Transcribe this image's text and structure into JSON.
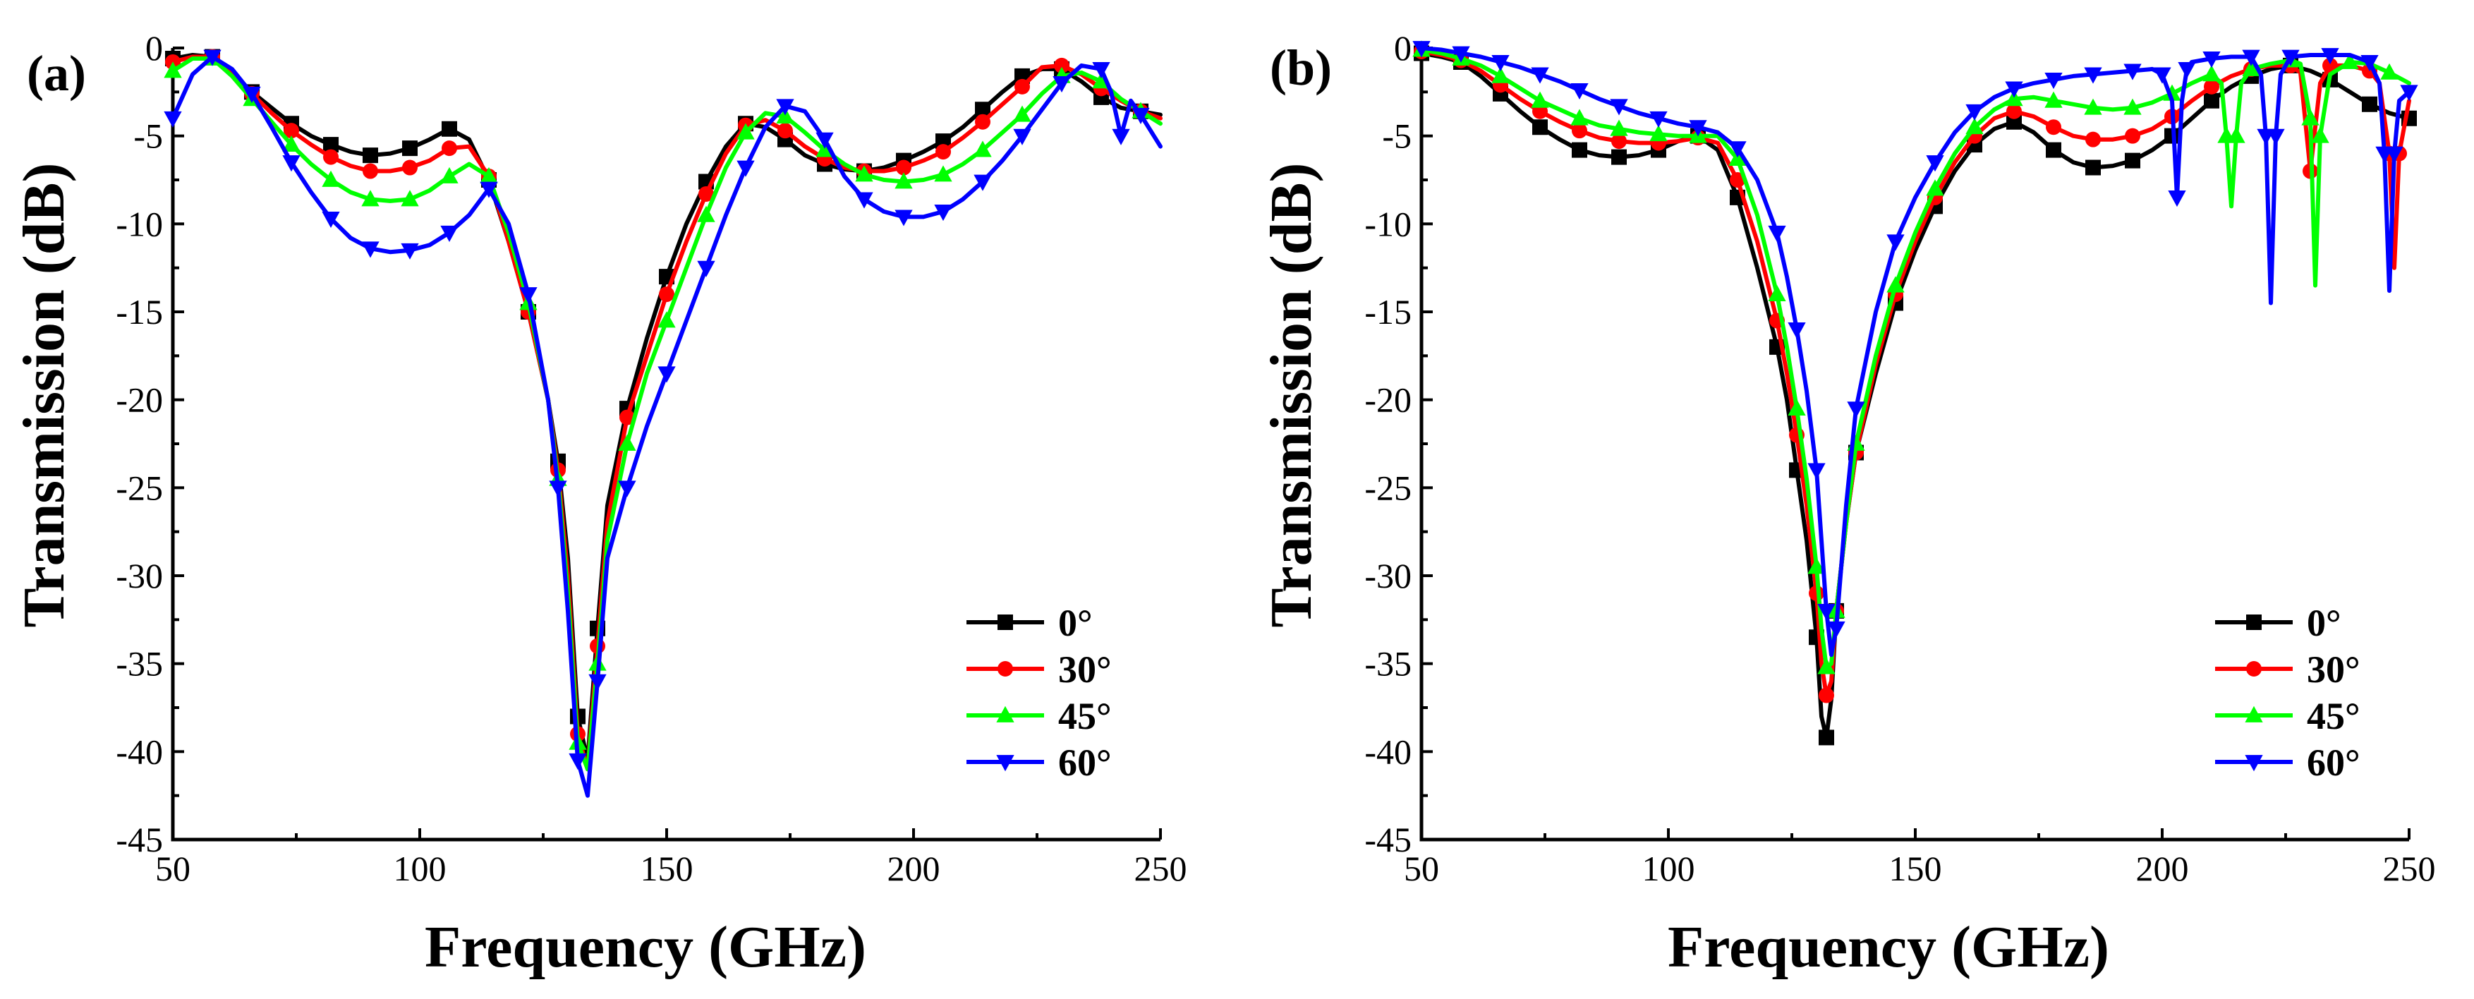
{
  "chart_data": [
    {
      "type": "line",
      "panel_label": "(a)",
      "xlabel": "Frequency (GHz)",
      "ylabel": "Transmission (dB)",
      "xlim": [
        50,
        250
      ],
      "ylim": [
        -45,
        0
      ],
      "xticks": [
        50,
        100,
        150,
        200,
        250
      ],
      "yticks": [
        0,
        -5,
        -10,
        -15,
        -20,
        -25,
        -30,
        -35,
        -40,
        -45
      ],
      "legend_position": "bottom-right",
      "series": [
        {
          "name": "0°",
          "color": "#000000",
          "marker": "square",
          "x": [
            50,
            54,
            58,
            62,
            66,
            70,
            74,
            78,
            82,
            86,
            90,
            94,
            98,
            102,
            106,
            110,
            114,
            118,
            122,
            126,
            128,
            130,
            132,
            134,
            136,
            138,
            142,
            146,
            150,
            154,
            158,
            162,
            166,
            170,
            174,
            178,
            182,
            186,
            190,
            194,
            198,
            202,
            206,
            210,
            214,
            218,
            222,
            226,
            230,
            234,
            238,
            242,
            246,
            250
          ],
          "y": [
            -0.6,
            -0.4,
            -0.5,
            -1.4,
            -2.5,
            -3.4,
            -4.3,
            -5.0,
            -5.5,
            -5.9,
            -6.1,
            -6.0,
            -5.7,
            -5.2,
            -4.6,
            -5.2,
            -7.5,
            -11.0,
            -15.0,
            -20.0,
            -23.5,
            -29.0,
            -38.0,
            -40.5,
            -33.0,
            -26.0,
            -20.5,
            -16.5,
            -13.0,
            -10.0,
            -7.6,
            -5.6,
            -4.3,
            -4.5,
            -5.2,
            -6.1,
            -6.6,
            -6.9,
            -7.0,
            -6.8,
            -6.4,
            -5.9,
            -5.3,
            -4.5,
            -3.5,
            -2.5,
            -1.6,
            -1.2,
            -1.2,
            -1.9,
            -2.8,
            -3.4,
            -3.6,
            -3.8
          ]
        },
        {
          "name": "30°",
          "color": "#ff0000",
          "marker": "circle",
          "x": [
            50,
            54,
            58,
            62,
            66,
            70,
            74,
            78,
            82,
            86,
            90,
            94,
            98,
            102,
            106,
            110,
            114,
            118,
            122,
            126,
            128,
            130,
            132,
            134,
            136,
            138,
            142,
            146,
            150,
            154,
            158,
            162,
            166,
            170,
            174,
            178,
            182,
            186,
            190,
            194,
            198,
            202,
            206,
            210,
            214,
            218,
            222,
            226,
            230,
            234,
            238,
            242,
            246,
            250
          ],
          "y": [
            -0.8,
            -0.5,
            -0.5,
            -1.5,
            -2.6,
            -3.7,
            -4.7,
            -5.5,
            -6.2,
            -6.7,
            -7.0,
            -7.0,
            -6.8,
            -6.4,
            -5.7,
            -5.6,
            -7.3,
            -11.0,
            -15.0,
            -20.0,
            -24.0,
            -30.0,
            -39.0,
            -41.0,
            -34.0,
            -27.0,
            -21.0,
            -17.5,
            -14.0,
            -11.0,
            -8.3,
            -6.0,
            -4.4,
            -4.1,
            -4.7,
            -5.6,
            -6.3,
            -6.8,
            -7.0,
            -7.0,
            -6.8,
            -6.4,
            -5.9,
            -5.1,
            -4.2,
            -3.2,
            -2.2,
            -1.1,
            -1.0,
            -1.5,
            -2.3,
            -3.0,
            -3.6,
            -4.0
          ]
        },
        {
          "name": "45°",
          "color": "#00ff00",
          "marker": "triangle-up",
          "x": [
            50,
            54,
            58,
            62,
            66,
            70,
            74,
            78,
            82,
            86,
            90,
            94,
            98,
            102,
            106,
            110,
            114,
            118,
            122,
            126,
            128,
            130,
            132,
            134,
            136,
            138,
            142,
            146,
            150,
            154,
            158,
            162,
            166,
            170,
            174,
            178,
            182,
            186,
            190,
            194,
            198,
            202,
            206,
            210,
            214,
            218,
            222,
            226,
            230,
            234,
            238,
            242,
            246,
            250
          ],
          "y": [
            -1.3,
            -0.6,
            -0.6,
            -1.6,
            -2.9,
            -4.2,
            -5.5,
            -6.6,
            -7.5,
            -8.2,
            -8.6,
            -8.7,
            -8.6,
            -8.1,
            -7.3,
            -6.6,
            -7.3,
            -10.5,
            -14.5,
            -20.0,
            -24.5,
            -31.0,
            -39.5,
            -41.0,
            -35.0,
            -28.0,
            -22.5,
            -18.5,
            -15.5,
            -12.5,
            -9.5,
            -6.8,
            -4.8,
            -3.7,
            -3.9,
            -4.8,
            -5.8,
            -6.6,
            -7.2,
            -7.5,
            -7.6,
            -7.5,
            -7.2,
            -6.6,
            -5.8,
            -4.8,
            -3.8,
            -2.6,
            -1.6,
            -1.4,
            -1.9,
            -2.9,
            -3.6,
            -4.3
          ]
        },
        {
          "name": "60°",
          "color": "#0000ff",
          "marker": "triangle-down",
          "x": [
            50,
            54,
            58,
            62,
            66,
            70,
            74,
            78,
            82,
            86,
            90,
            94,
            98,
            102,
            106,
            110,
            114,
            118,
            122,
            126,
            128,
            130,
            132,
            134,
            136,
            138,
            142,
            146,
            150,
            154,
            158,
            162,
            166,
            170,
            174,
            178,
            182,
            186,
            190,
            194,
            198,
            202,
            206,
            210,
            214,
            218,
            222,
            226,
            230,
            234,
            238,
            240,
            242,
            244,
            246,
            250
          ],
          "y": [
            -4.0,
            -1.5,
            -0.5,
            -1.2,
            -2.6,
            -4.5,
            -6.5,
            -8.2,
            -9.7,
            -10.8,
            -11.4,
            -11.6,
            -11.5,
            -11.2,
            -10.5,
            -9.5,
            -8.0,
            -10.0,
            -14.0,
            -20.0,
            -25.0,
            -32.0,
            -40.5,
            -42.5,
            -36.0,
            -29.0,
            -25.0,
            -21.5,
            -18.5,
            -15.5,
            -12.5,
            -9.5,
            -6.8,
            -4.5,
            -3.3,
            -3.6,
            -5.2,
            -7.3,
            -8.6,
            -9.3,
            -9.6,
            -9.6,
            -9.3,
            -8.6,
            -7.6,
            -6.4,
            -5.0,
            -3.5,
            -2.0,
            -1.0,
            -1.2,
            -2.5,
            -5.0,
            -3.0,
            -3.8,
            -5.6
          ]
        }
      ]
    },
    {
      "type": "line",
      "panel_label": "(b)",
      "xlabel": "Frequency (GHz)",
      "ylabel": "Transmission (dB)",
      "xlim": [
        50,
        250
      ],
      "ylim": [
        -45,
        0
      ],
      "xticks": [
        50,
        100,
        150,
        200,
        250
      ],
      "yticks": [
        0,
        -5,
        -10,
        -15,
        -20,
        -25,
        -30,
        -35,
        -40,
        -45
      ],
      "legend_position": "bottom-right",
      "series": [
        {
          "name": "0°",
          "color": "#000000",
          "marker": "square",
          "x": [
            50,
            54,
            58,
            62,
            66,
            70,
            74,
            78,
            82,
            86,
            90,
            94,
            98,
            102,
            106,
            110,
            114,
            118,
            122,
            124,
            126,
            128,
            130,
            131,
            132,
            133,
            134,
            136,
            138,
            142,
            146,
            150,
            154,
            158,
            162,
            166,
            170,
            174,
            178,
            182,
            186,
            190,
            194,
            198,
            202,
            206,
            210,
            214,
            218,
            222,
            226,
            230,
            234,
            238,
            242,
            246,
            250
          ],
          "y": [
            -0.3,
            -0.5,
            -0.8,
            -1.6,
            -2.6,
            -3.6,
            -4.5,
            -5.2,
            -5.8,
            -6.1,
            -6.2,
            -6.1,
            -5.8,
            -5.3,
            -5.0,
            -5.8,
            -8.5,
            -12.5,
            -17.0,
            -20.0,
            -24.0,
            -28.0,
            -33.5,
            -38.0,
            -39.2,
            -37.0,
            -32.0,
            -27.0,
            -23.0,
            -18.5,
            -14.5,
            -11.5,
            -9.0,
            -7.0,
            -5.5,
            -4.6,
            -4.2,
            -4.8,
            -5.8,
            -6.5,
            -6.8,
            -6.7,
            -6.4,
            -5.8,
            -5.0,
            -4.0,
            -3.0,
            -2.2,
            -1.6,
            -1.2,
            -1.0,
            -1.3,
            -1.8,
            -2.5,
            -3.2,
            -3.7,
            -4.0
          ]
        },
        {
          "name": "30°",
          "color": "#ff0000",
          "marker": "circle",
          "x": [
            50,
            54,
            58,
            62,
            66,
            70,
            74,
            78,
            82,
            86,
            90,
            94,
            98,
            102,
            106,
            110,
            114,
            118,
            122,
            124,
            126,
            128,
            130,
            131,
            132,
            133,
            134,
            136,
            138,
            142,
            146,
            150,
            154,
            158,
            162,
            166,
            170,
            174,
            178,
            182,
            186,
            190,
            194,
            198,
            202,
            206,
            210,
            214,
            218,
            222,
            226,
            228,
            230,
            232,
            234,
            238,
            242,
            244,
            246,
            247,
            248,
            250
          ],
          "y": [
            -0.2,
            -0.4,
            -0.7,
            -1.3,
            -2.1,
            -2.9,
            -3.6,
            -4.2,
            -4.7,
            -5.1,
            -5.3,
            -5.4,
            -5.4,
            -5.3,
            -5.1,
            -5.4,
            -7.5,
            -11.0,
            -15.5,
            -18.5,
            -22.0,
            -26.0,
            -31.0,
            -35.0,
            -36.8,
            -36.0,
            -32.0,
            -27.0,
            -23.0,
            -18.0,
            -14.0,
            -11.0,
            -8.5,
            -6.5,
            -5.0,
            -4.0,
            -3.6,
            -3.9,
            -4.5,
            -5.0,
            -5.2,
            -5.2,
            -5.0,
            -4.6,
            -3.9,
            -3.0,
            -2.2,
            -1.6,
            -1.2,
            -1.0,
            -1.0,
            -1.4,
            -7.0,
            -2.0,
            -1.0,
            -1.0,
            -1.3,
            -2.0,
            -6.0,
            -12.5,
            -6.0,
            -3.0
          ]
        },
        {
          "name": "45°",
          "color": "#00ff00",
          "marker": "triangle-up",
          "x": [
            50,
            54,
            58,
            62,
            66,
            70,
            74,
            78,
            82,
            86,
            90,
            94,
            98,
            102,
            106,
            110,
            114,
            118,
            122,
            124,
            126,
            128,
            130,
            131,
            132,
            133,
            134,
            136,
            138,
            142,
            146,
            150,
            154,
            158,
            162,
            166,
            170,
            174,
            178,
            182,
            186,
            190,
            194,
            198,
            202,
            206,
            210,
            212,
            213,
            214,
            215,
            216,
            218,
            222,
            226,
            228,
            230,
            231,
            232,
            234,
            238,
            242,
            246,
            250
          ],
          "y": [
            -0.1,
            -0.3,
            -0.6,
            -1.0,
            -1.6,
            -2.3,
            -3.0,
            -3.5,
            -4.0,
            -4.4,
            -4.6,
            -4.8,
            -4.9,
            -5.0,
            -5.0,
            -5.0,
            -6.3,
            -9.5,
            -14.0,
            -17.0,
            -20.5,
            -24.5,
            -29.5,
            -33.0,
            -35.2,
            -35.0,
            -32.0,
            -27.0,
            -22.5,
            -17.5,
            -13.5,
            -10.5,
            -8.0,
            -6.0,
            -4.5,
            -3.5,
            -2.9,
            -2.8,
            -3.0,
            -3.2,
            -3.4,
            -3.5,
            -3.4,
            -3.1,
            -2.6,
            -2.0,
            -1.5,
            -2.0,
            -5.0,
            -9.0,
            -5.0,
            -2.0,
            -1.2,
            -0.9,
            -0.7,
            -0.9,
            -4.0,
            -13.5,
            -5.0,
            -1.5,
            -0.8,
            -0.9,
            -1.4,
            -2.0
          ]
        },
        {
          "name": "60°",
          "color": "#0000ff",
          "marker": "triangle-down",
          "x": [
            50,
            54,
            58,
            62,
            66,
            70,
            74,
            78,
            82,
            86,
            90,
            94,
            98,
            102,
            106,
            110,
            114,
            118,
            122,
            124,
            126,
            128,
            130,
            131,
            132,
            133,
            134,
            136,
            138,
            142,
            146,
            150,
            154,
            158,
            162,
            166,
            170,
            174,
            178,
            182,
            186,
            190,
            194,
            198,
            200,
            202,
            203,
            204,
            205,
            206,
            210,
            214,
            218,
            220,
            221,
            222,
            223,
            224,
            226,
            230,
            234,
            238,
            242,
            244,
            245,
            246,
            247,
            248,
            250
          ],
          "y": [
            0.0,
            -0.1,
            -0.3,
            -0.5,
            -0.8,
            -1.1,
            -1.5,
            -1.9,
            -2.4,
            -2.9,
            -3.3,
            -3.7,
            -4.0,
            -4.3,
            -4.5,
            -4.8,
            -5.7,
            -7.5,
            -10.5,
            -13.0,
            -16.0,
            -19.5,
            -24.0,
            -28.0,
            -32.0,
            -34.5,
            -33.0,
            -26.0,
            -20.5,
            -15.0,
            -11.0,
            -8.5,
            -6.5,
            -4.8,
            -3.6,
            -2.8,
            -2.3,
            -2.0,
            -1.8,
            -1.6,
            -1.5,
            -1.4,
            -1.3,
            -1.2,
            -1.5,
            -3.0,
            -8.5,
            -3.0,
            -1.2,
            -0.8,
            -0.6,
            -0.5,
            -0.5,
            -1.5,
            -5.0,
            -14.5,
            -5.0,
            -1.5,
            -0.5,
            -0.4,
            -0.4,
            -0.4,
            -0.8,
            -2.0,
            -6.0,
            -13.8,
            -6.0,
            -3.0,
            -2.5
          ]
        }
      ]
    }
  ]
}
